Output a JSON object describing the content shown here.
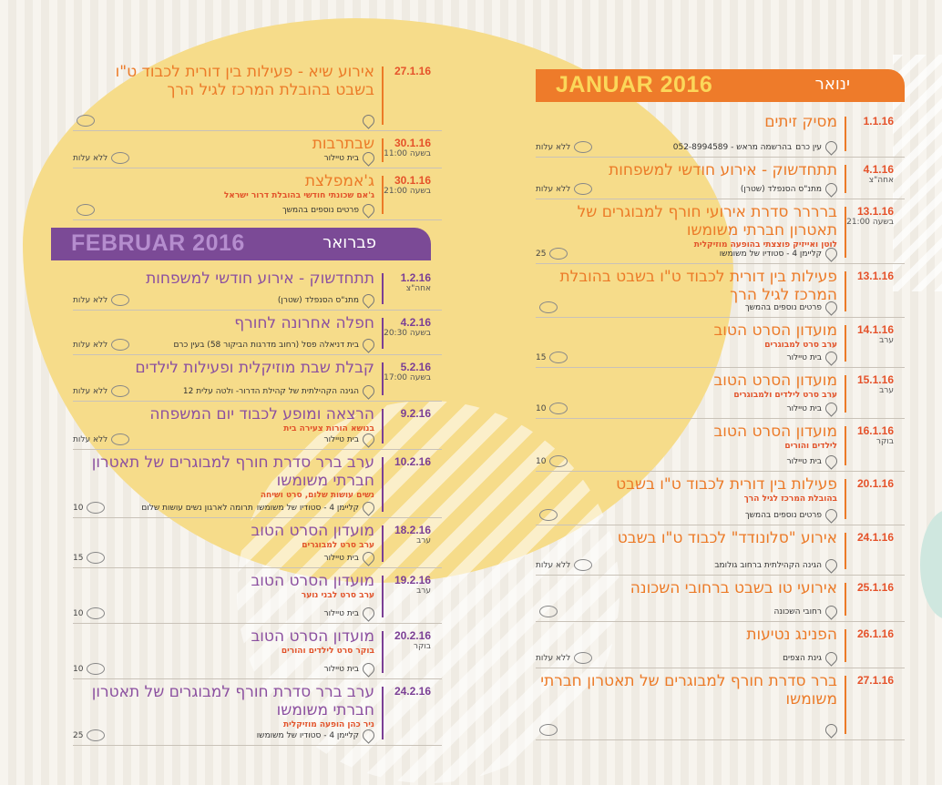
{
  "january": {
    "heading_latin": "JANUAR 2016",
    "heading_hebrew": "ינואר",
    "events": [
      {
        "date": "1.1.16",
        "sub": "",
        "title": "מסיק זיתים",
        "note": "",
        "place": "עין כרם",
        "extra": "בהרשמה מראש - 052-8994589",
        "price": "ללא עלות",
        "h": 52
      },
      {
        "date": "4.1.16",
        "sub": "אחה\"צ",
        "title": "תתחדשוק - אירוע חודשי למשפחות",
        "note": "",
        "place": "מתנ\"ס הסנפלד (שטרן)",
        "extra": "",
        "price": "ללא עלות",
        "h": 45
      },
      {
        "date": "13.1.16",
        "sub": "בשעה 21:00",
        "title": "ברררר סדרת אירועי חורף למבוגרים של תאטרון חברתי משומשו",
        "note": "לוטן ואייזיק פוצצתי בהופעה מוזיקלית",
        "place": "קליימן 4 - סטודיו של משומשו",
        "extra": "",
        "price": "25",
        "h": 70
      },
      {
        "date": "13.1.16",
        "sub": "",
        "title": "פעילות בין דורית לכבוד ט\"ו בשבט בהובלת המרכז לגיל הרך",
        "note": "",
        "place": "פרטים נוספים בהמשך",
        "extra": "",
        "price": "",
        "h": 58
      },
      {
        "date": "14.1.16",
        "sub": "ערב",
        "title": "מועדון הסרט הטוב",
        "note": "ערב סרט למבוגרים",
        "place": "בית טיילור",
        "extra": "",
        "price": "15",
        "h": 54
      },
      {
        "date": "15.1.16",
        "sub": "ערב",
        "title": "מועדון הסרט הטוב",
        "note": "ערב סרט לילדים ולמבוגרים",
        "place": "בית טיילור",
        "extra": "",
        "price": "10",
        "h": 55
      },
      {
        "date": "16.1.16",
        "sub": "בוקר",
        "title": "מועדון הסרט הטוב",
        "note": "לילדים והורים",
        "place": "בית טיילור",
        "extra": "",
        "price": "10",
        "h": 57
      },
      {
        "date": "20.1.16",
        "sub": "",
        "title": "פעילות בין דורית לכבוד ט\"ו בשבט",
        "note": "בהובלת המרכז לגיל הרך",
        "place": "פרטים נוספים בהמשך",
        "extra": "",
        "price": "",
        "h": 58
      },
      {
        "date": "24.1.16",
        "sub": "",
        "title": "אירוע \"סלונודד\" לכבוד ט\"ו בשבט",
        "note": "",
        "place": "הגינה הקהילתית ברחוב גולומב",
        "extra": "",
        "price": "ללא עלות",
        "h": 54
      },
      {
        "date": "25.1.16",
        "sub": "",
        "title": "אירועי טו בשבט ברחובי השכונה",
        "note": "",
        "place": "רחובי השכונה",
        "extra": "",
        "price": "",
        "h": 50
      },
      {
        "date": "26.1.16",
        "sub": "",
        "title": "הפנינג נטיעות",
        "note": "",
        "place": "גינת הצפים",
        "extra": "",
        "price": "ללא עלות",
        "h": 50
      },
      {
        "date": "27.1.16",
        "sub": "",
        "title": "ברר סדרת חורף למבוגרים של תאטרון חברתי משומשו",
        "note": "",
        "place": "",
        "extra": "",
        "price": "",
        "h": 78
      }
    ]
  },
  "january_end": [
    {
      "date": "27.1.16",
      "sub": "",
      "title": "אירוע שיא - פעילות בין דורית לכבוד ט\"ו בשבט בהובלת המרכז לגיל הרך",
      "note": "",
      "place": "",
      "extra": "",
      "price": "",
      "h": 78
    },
    {
      "date": "30.1.16",
      "sub": "בשעה 11:00",
      "title": "שבתרבות",
      "note": "",
      "place": "בית טיילור",
      "extra": "",
      "price": "ללא עלות",
      "h": 40
    },
    {
      "date": "30.1.16",
      "sub": "בשעה 21:00",
      "title": "ג'אמפלצת",
      "note": "ג'אם שכונתי חודשי בהובלת דרור ישראל",
      "place": "פרטים נוספים בהמשך",
      "extra": "",
      "price": "",
      "h": 56
    }
  ],
  "february": {
    "heading_latin": "FEBRUAR 2016",
    "heading_hebrew": "פברואר",
    "events": [
      {
        "date": "1.2.16",
        "sub": "אחה\"צ",
        "title": "תתחדשוק - אירוע חודשי למשפחות",
        "note": "",
        "place": "מתנ\"ס הסנפלד (שטרן)",
        "extra": "",
        "price": "ללא עלות",
        "h": 48
      },
      {
        "date": "4.2.16",
        "sub": "בשעה 20:30",
        "title": "חפלה אחרונה לחורף",
        "note": "",
        "place": "בית דניאלה פסל (רחוב מדרגות הביקור 58) בעין כרם",
        "extra": "",
        "price": "ללא עלות",
        "h": 48
      },
      {
        "date": "5.2.16",
        "sub": "בשעה 17:00",
        "title": "קבלת שבת מוזיקלית ופעילות לילדים",
        "note": "",
        "place": "הגינה הקהילתית של קהילת הדרור- ולטה עלית 12",
        "extra": "",
        "price": "ללא עלות",
        "h": 50
      },
      {
        "date": "9.2.16",
        "sub": "",
        "title": "הרצאה ומופע לכבוד יום המשפחה",
        "note": "בנושא הורות צעירה בית",
        "place": "בית טיילור",
        "extra": "",
        "price": "ללא עלות",
        "h": 52
      },
      {
        "date": "10.2.16",
        "sub": "",
        "title": "ערב ברר סדרת חורף למבוגרים של תאטרון חברתי משומשו",
        "note": "נשים עושות שלום, סרט ושיחה",
        "place": "קליימן 4 - סטודיו של משומשו",
        "extra": "תרומה לארגון נשים עושות שלום",
        "price": "10",
        "h": 74
      },
      {
        "date": "18.2.16",
        "sub": "ערב",
        "title": "מועדון הסרט הטוב",
        "note": "ערב סרט למבוגרים",
        "place": "בית טיילור",
        "extra": "",
        "price": "15",
        "h": 54
      },
      {
        "date": "19.2.16",
        "sub": "ערב",
        "title": "מועדון הסרט הטוב",
        "note": "ערב סרט לבני נוער",
        "place": "בית טיילור",
        "extra": "",
        "price": "10",
        "h": 60
      },
      {
        "date": "20.2.16",
        "sub": "בוקר",
        "title": "מועדון הסרט הטוב",
        "note": "בוקר סרט לילדים והורים",
        "place": "בית טיילור",
        "extra": "",
        "price": "10",
        "h": 60
      },
      {
        "date": "24.2.16",
        "sub": "",
        "title": "ערב ברר סדרת חורף למבוגרים של תאטרון חברתי משומשו",
        "note": "ניר כהן הופעה מוזיקלית",
        "place": "קליימן 4 - סטודיו של משומשו",
        "extra": "",
        "price": "25",
        "h": 72
      }
    ]
  }
}
